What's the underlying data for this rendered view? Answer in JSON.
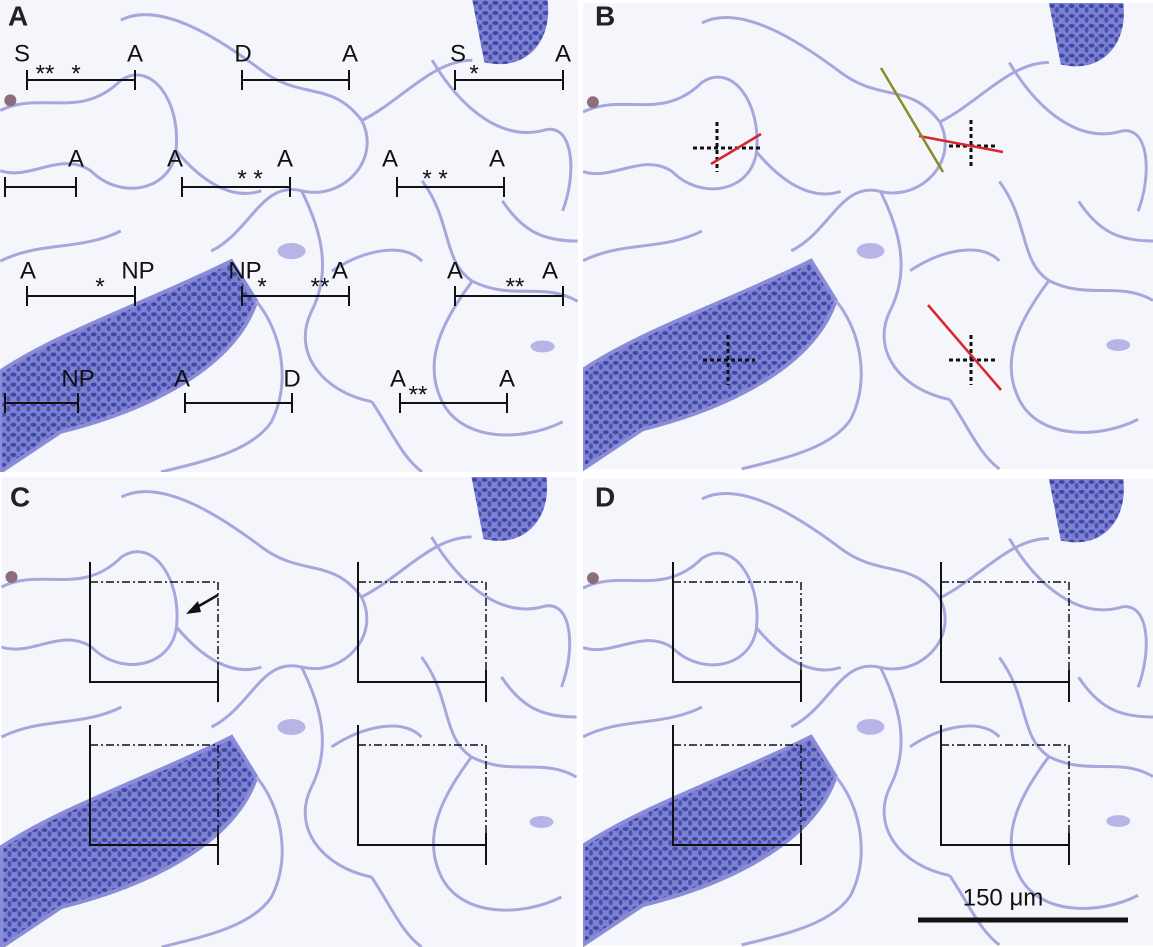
{
  "panels": [
    {
      "label": "A",
      "annotations": [
        "S",
        "**",
        "*",
        "A",
        "D",
        "A",
        "S",
        "*",
        "A",
        "A",
        "A",
        "* *",
        "A",
        "A",
        "* *",
        "A",
        "A",
        "*",
        "NP",
        "NP",
        "*",
        "**",
        "A",
        "A",
        "**",
        "A",
        "NP",
        "A",
        "D",
        "A",
        "**",
        "A"
      ]
    },
    {
      "label": "B"
    },
    {
      "label": "C"
    },
    {
      "label": "D"
    }
  ],
  "scale_bar": "150 μm"
}
